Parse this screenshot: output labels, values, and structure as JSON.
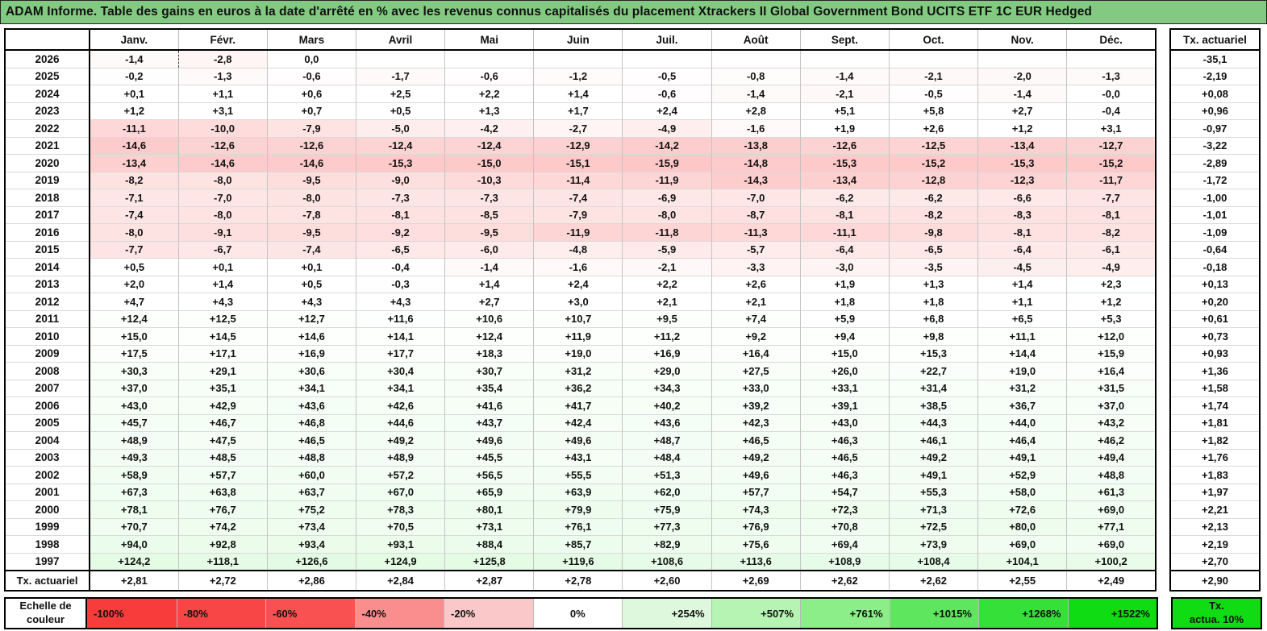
{
  "title": "ADAM Informe. Table des gains en euros à la date d'arrêté en % avec les revenus connus capitalisés du placement Xtrackers II Global Government Bond UCITS ETF 1C EUR Hedged",
  "colors": {
    "title_bg": "#82c982",
    "negative_full": "#f83c3c",
    "positive_full": "#0fdc13",
    "empty_cell": "#ffffff"
  },
  "chart_data": {
    "type": "heatmap",
    "title": "Gains en euros à la date d'arrêté en %",
    "row_header_label": "",
    "columns": [
      "Janv.",
      "Févr.",
      "Mars",
      "Avril",
      "Mai",
      "Juin",
      "Juil.",
      "Août",
      "Sept.",
      "Oct.",
      "Nov.",
      "Déc."
    ],
    "rows": [
      "2026",
      "2025",
      "2024",
      "2023",
      "2022",
      "2021",
      "2020",
      "2019",
      "2018",
      "2017",
      "2016",
      "2015",
      "2014",
      "2013",
      "2012",
      "2011",
      "2010",
      "2009",
      "2008",
      "2007",
      "2006",
      "2005",
      "2004",
      "2003",
      "2002",
      "2001",
      "2000",
      "1999",
      "1998",
      "1997"
    ],
    "values": [
      [
        "-1,4",
        "-2,8",
        "0,0",
        "",
        "",
        "",
        "",
        "",
        "",
        "",
        "",
        ""
      ],
      [
        "-0,2",
        "-1,3",
        "-0,6",
        "-1,7",
        "-0,6",
        "-1,2",
        "-0,5",
        "-0,8",
        "-1,4",
        "-2,1",
        "-2,0",
        "-1,3"
      ],
      [
        "+0,1",
        "+1,1",
        "+0,6",
        "+2,5",
        "+2,2",
        "+1,4",
        "-0,6",
        "-1,4",
        "-2,1",
        "-0,5",
        "-1,4",
        "-0,0"
      ],
      [
        "+1,2",
        "+3,1",
        "+0,7",
        "+0,5",
        "+1,3",
        "+1,7",
        "+2,4",
        "+2,8",
        "+5,1",
        "+5,8",
        "+2,7",
        "-0,4"
      ],
      [
        "-11,1",
        "-10,0",
        "-7,9",
        "-5,0",
        "-4,2",
        "-2,7",
        "-4,9",
        "-1,6",
        "+1,9",
        "+2,6",
        "+1,2",
        "+3,1"
      ],
      [
        "-14,6",
        "-12,6",
        "-12,6",
        "-12,4",
        "-12,4",
        "-12,9",
        "-14,2",
        "-13,8",
        "-12,6",
        "-12,5",
        "-13,4",
        "-12,7"
      ],
      [
        "-13,4",
        "-14,6",
        "-14,6",
        "-15,3",
        "-15,0",
        "-15,1",
        "-15,9",
        "-14,8",
        "-15,3",
        "-15,2",
        "-15,3",
        "-15,2"
      ],
      [
        "-8,2",
        "-8,0",
        "-9,5",
        "-9,0",
        "-10,3",
        "-11,4",
        "-11,9",
        "-14,3",
        "-13,4",
        "-12,8",
        "-12,3",
        "-11,7"
      ],
      [
        "-7,1",
        "-7,0",
        "-8,0",
        "-7,3",
        "-7,3",
        "-7,4",
        "-6,9",
        "-7,0",
        "-6,2",
        "-6,2",
        "-6,6",
        "-7,7"
      ],
      [
        "-7,4",
        "-8,0",
        "-7,8",
        "-8,1",
        "-8,5",
        "-7,9",
        "-8,0",
        "-8,7",
        "-8,1",
        "-8,2",
        "-8,3",
        "-8,1"
      ],
      [
        "-8,0",
        "-9,1",
        "-9,5",
        "-9,2",
        "-9,5",
        "-11,9",
        "-11,8",
        "-11,3",
        "-11,1",
        "-9,8",
        "-8,1",
        "-8,2"
      ],
      [
        "-7,7",
        "-6,7",
        "-7,4",
        "-6,5",
        "-6,0",
        "-4,8",
        "-5,9",
        "-5,7",
        "-6,4",
        "-6,5",
        "-6,4",
        "-6,1"
      ],
      [
        "+0,5",
        "+0,1",
        "+0,1",
        "-0,4",
        "-1,4",
        "-1,6",
        "-2,1",
        "-3,3",
        "-3,0",
        "-3,5",
        "-4,5",
        "-4,9"
      ],
      [
        "+2,0",
        "+1,4",
        "+0,5",
        "-0,3",
        "+1,4",
        "+2,4",
        "+2,2",
        "+2,6",
        "+1,9",
        "+1,3",
        "+1,4",
        "+2,3"
      ],
      [
        "+4,7",
        "+4,3",
        "+4,3",
        "+4,3",
        "+2,7",
        "+3,0",
        "+2,1",
        "+2,1",
        "+1,8",
        "+1,8",
        "+1,1",
        "+1,2"
      ],
      [
        "+12,4",
        "+12,5",
        "+12,7",
        "+11,6",
        "+10,6",
        "+10,7",
        "+9,5",
        "+7,4",
        "+5,9",
        "+6,8",
        "+6,5",
        "+5,3"
      ],
      [
        "+15,0",
        "+14,5",
        "+14,6",
        "+14,1",
        "+12,4",
        "+11,9",
        "+11,2",
        "+9,2",
        "+9,4",
        "+9,8",
        "+11,1",
        "+12,0"
      ],
      [
        "+17,5",
        "+17,1",
        "+16,9",
        "+17,7",
        "+18,3",
        "+19,0",
        "+16,9",
        "+16,4",
        "+15,0",
        "+15,3",
        "+14,4",
        "+15,9"
      ],
      [
        "+30,3",
        "+29,1",
        "+30,6",
        "+30,4",
        "+30,7",
        "+31,2",
        "+29,0",
        "+27,5",
        "+26,0",
        "+22,7",
        "+19,0",
        "+16,4"
      ],
      [
        "+37,0",
        "+35,1",
        "+34,1",
        "+34,1",
        "+35,4",
        "+36,2",
        "+34,3",
        "+33,0",
        "+33,1",
        "+31,4",
        "+31,2",
        "+31,5"
      ],
      [
        "+43,0",
        "+42,9",
        "+43,6",
        "+42,6",
        "+41,6",
        "+41,7",
        "+40,2",
        "+39,2",
        "+39,1",
        "+38,5",
        "+36,7",
        "+37,0"
      ],
      [
        "+45,7",
        "+46,7",
        "+46,8",
        "+44,6",
        "+43,7",
        "+42,4",
        "+43,6",
        "+42,3",
        "+43,0",
        "+44,3",
        "+44,0",
        "+43,2"
      ],
      [
        "+48,9",
        "+47,5",
        "+46,5",
        "+49,2",
        "+49,6",
        "+49,6",
        "+48,7",
        "+46,5",
        "+46,3",
        "+46,1",
        "+46,4",
        "+46,2"
      ],
      [
        "+49,3",
        "+48,5",
        "+48,8",
        "+48,9",
        "+45,5",
        "+43,1",
        "+48,4",
        "+49,2",
        "+46,5",
        "+49,2",
        "+49,1",
        "+49,4"
      ],
      [
        "+58,9",
        "+57,7",
        "+60,0",
        "+57,2",
        "+56,5",
        "+55,5",
        "+51,3",
        "+49,6",
        "+46,3",
        "+49,1",
        "+52,9",
        "+48,8"
      ],
      [
        "+67,3",
        "+63,8",
        "+63,7",
        "+67,0",
        "+65,9",
        "+63,9",
        "+62,0",
        "+57,7",
        "+54,7",
        "+55,3",
        "+58,0",
        "+61,3"
      ],
      [
        "+78,1",
        "+76,7",
        "+75,2",
        "+78,3",
        "+80,1",
        "+79,9",
        "+75,9",
        "+74,3",
        "+72,3",
        "+71,3",
        "+72,6",
        "+69,0"
      ],
      [
        "+70,7",
        "+74,2",
        "+73,4",
        "+70,5",
        "+73,1",
        "+76,1",
        "+77,3",
        "+76,9",
        "+70,8",
        "+72,5",
        "+80,0",
        "+77,1"
      ],
      [
        "+94,0",
        "+92,8",
        "+93,4",
        "+93,1",
        "+88,4",
        "+85,7",
        "+82,9",
        "+75,6",
        "+69,4",
        "+73,9",
        "+69,0",
        "+69,0"
      ],
      [
        "+124,2",
        "+118,1",
        "+126,6",
        "+124,9",
        "+125,8",
        "+119,6",
        "+108,6",
        "+113,6",
        "+108,9",
        "+108,4",
        "+104,1",
        "+100,2"
      ]
    ],
    "footer_row": {
      "label": "Tx. actuariel",
      "values": [
        "+2,81",
        "+2,72",
        "+2,86",
        "+2,84",
        "+2,87",
        "+2,78",
        "+2,60",
        "+2,69",
        "+2,62",
        "+2,62",
        "+2,55",
        "+2,49"
      ]
    },
    "tx_column": {
      "header": "Tx. actuariel",
      "values": [
        "-35,1",
        "-2,19",
        "+0,08",
        "+0,96",
        "-0,97",
        "-3,22",
        "-2,89",
        "-1,72",
        "-1,00",
        "-1,01",
        "-1,09",
        "-0,64",
        "-0,18",
        "+0,13",
        "+0,20",
        "+0,61",
        "+0,73",
        "+0,93",
        "+1,36",
        "+1,58",
        "+1,74",
        "+1,81",
        "+1,82",
        "+1,76",
        "+1,83",
        "+1,97",
        "+2,21",
        "+2,13",
        "+2,19",
        "+2,70"
      ],
      "footer": "+2,90"
    },
    "dashed_cell": {
      "row_index": 0,
      "col_index": 1
    }
  },
  "legend": {
    "label_line1": "Echelle de",
    "label_line2": "couleur",
    "items": [
      {
        "label": "-100%",
        "color": "#f83b3b"
      },
      {
        "label": "-80%",
        "color": "#f84545"
      },
      {
        "label": "-60%",
        "color": "#f95151"
      },
      {
        "label": "-40%",
        "color": "#fa8e8e"
      },
      {
        "label": "-20%",
        "color": "#fac8c8"
      },
      {
        "label": "0%",
        "color": "#ffffff"
      },
      {
        "label": "+254%",
        "color": "#ddf8dc"
      },
      {
        "label": "+507%",
        "color": "#b5f4b2"
      },
      {
        "label": "+761%",
        "color": "#8bee89"
      },
      {
        "label": "+1015%",
        "color": "#5ee75e"
      },
      {
        "label": "+1268%",
        "color": "#35e139"
      },
      {
        "label": "+1522%",
        "color": "#0fdc13"
      }
    ],
    "box_line1": "Tx.",
    "box_line2": "actua. 10%",
    "box_color": "#0fdc13"
  }
}
